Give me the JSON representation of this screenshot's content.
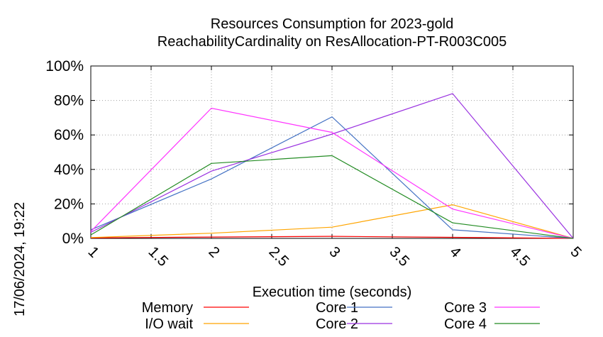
{
  "chart_data": {
    "type": "line",
    "title": "Resources Consumption for 2023-gold",
    "subtitle": "ReachabilityCardinality on ResAllocation-PT-R003C005",
    "xlabel": "Execution time (seconds)",
    "ylabel": "",
    "xlim": [
      1,
      5
    ],
    "ylim": [
      0,
      100
    ],
    "x_ticks": [
      "1",
      "1.5",
      "2",
      "2.5",
      "3",
      "3.5",
      "4",
      "4.5",
      "5"
    ],
    "y_ticks": [
      "0%",
      "20%",
      "40%",
      "60%",
      "80%",
      "100%"
    ],
    "grid": true,
    "legend_position": "bottom",
    "timestamp": "17/06/2024, 19:22",
    "series": [
      {
        "name": "Memory",
        "color": "#ff0000",
        "x": [
          1,
          2,
          3,
          4,
          5
        ],
        "y": [
          0.3,
          0.8,
          1.2,
          0.6,
          0
        ]
      },
      {
        "name": "I/O wait",
        "color": "#ffa500",
        "x": [
          1,
          2,
          3,
          4,
          5
        ],
        "y": [
          0.5,
          3,
          6.5,
          19.5,
          0
        ]
      },
      {
        "name": "Core 1",
        "color": "#4472c4",
        "x": [
          1,
          2,
          3,
          4,
          5
        ],
        "y": [
          5,
          34.5,
          70.5,
          5,
          0
        ]
      },
      {
        "name": "Core 2",
        "color": "#9a32e0",
        "x": [
          1,
          2,
          3,
          4,
          5
        ],
        "y": [
          3.5,
          39,
          60.5,
          84,
          0
        ]
      },
      {
        "name": "Core 3",
        "color": "#ff33ff",
        "x": [
          1,
          2,
          3,
          4,
          5
        ],
        "y": [
          4,
          75.5,
          61.5,
          17,
          0
        ]
      },
      {
        "name": "Core 4",
        "color": "#228b22",
        "x": [
          1,
          2,
          3,
          4,
          5
        ],
        "y": [
          2,
          43.5,
          48,
          9,
          0
        ]
      }
    ]
  }
}
